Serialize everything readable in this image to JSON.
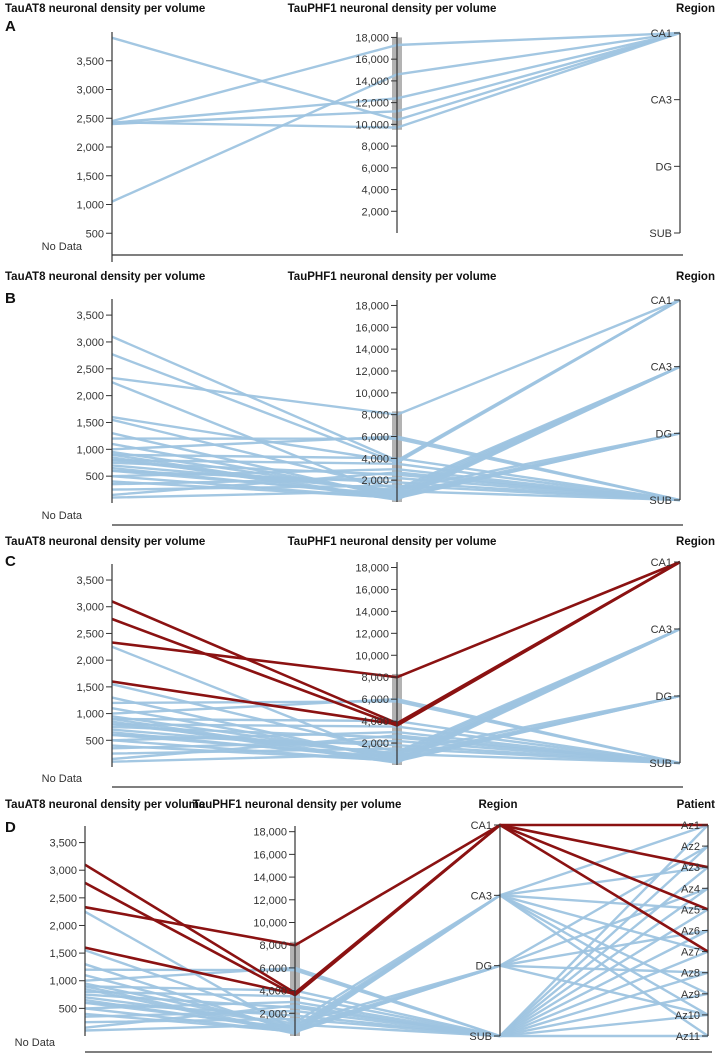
{
  "colors": {
    "line": "#9ec4e0",
    "highlight": "#8b1212",
    "axis": "#333333",
    "brush": "#9a9a9a"
  },
  "chart_data": [
    {
      "panel": "A",
      "type": "parallel-coordinates",
      "no_data_label": "No Data",
      "axes": [
        {
          "title": "TauAT8 neuronal density per volume",
          "kind": "linear",
          "domain": [
            0,
            4000
          ],
          "ticks": [
            500,
            1000,
            1500,
            2000,
            2500,
            3000,
            3500
          ],
          "tick_labels": [
            "500",
            "1,000",
            "1,500",
            "2,000",
            "2,500",
            "3,000",
            "3,500"
          ]
        },
        {
          "title": "TauPHF1 neuronal density per volume",
          "kind": "linear",
          "domain": [
            0,
            18500
          ],
          "ticks": [
            2000,
            4000,
            6000,
            8000,
            10000,
            12000,
            14000,
            16000,
            18000
          ],
          "tick_labels": [
            "2,000",
            "4,000",
            "6,000",
            "8,000",
            "10,000",
            "12,000",
            "14,000",
            "16,000",
            "18,000"
          ],
          "brush": [
            9500,
            18000
          ]
        },
        {
          "title": "Region",
          "kind": "ordinal",
          "categories": [
            "CA1",
            "CA3",
            "DG",
            "SUB"
          ]
        }
      ],
      "records": [
        {
          "values": [
            3900,
            10400,
            "CA1"
          ]
        },
        {
          "values": [
            2450,
            17300,
            "CA1"
          ]
        },
        {
          "values": [
            2420,
            12400,
            "CA1"
          ]
        },
        {
          "values": [
            2400,
            11200,
            "CA1"
          ]
        },
        {
          "values": [
            1050,
            14600,
            "CA1"
          ]
        },
        {
          "values": [
            2430,
            9700,
            "CA1"
          ]
        }
      ]
    },
    {
      "panel": "B",
      "type": "parallel-coordinates",
      "no_data_label": "No Data",
      "axes": [
        {
          "title": "TauAT8 neuronal density per volume",
          "kind": "linear",
          "domain": [
            0,
            3800
          ],
          "ticks": [
            500,
            1000,
            1500,
            2000,
            2500,
            3000,
            3500
          ],
          "tick_labels": [
            "500",
            "1,000",
            "1,500",
            "2,000",
            "2,500",
            "3,000",
            "3,500"
          ]
        },
        {
          "title": "TauPHF1 neuronal density per volume",
          "kind": "linear",
          "domain": [
            0,
            18500
          ],
          "ticks": [
            2000,
            4000,
            6000,
            8000,
            10000,
            12000,
            14000,
            16000,
            18000
          ],
          "tick_labels": [
            "2,000",
            "4,000",
            "6,000",
            "8,000",
            "10,000",
            "12,000",
            "14,000",
            "16,000",
            "18,000"
          ],
          "brush": [
            0,
            8300
          ]
        },
        {
          "title": "Region",
          "kind": "ordinal",
          "categories": [
            "CA1",
            "CA3",
            "DG",
            "SUB"
          ]
        }
      ],
      "records": [
        {
          "values": [
            3100,
            3800,
            "CA1"
          ]
        },
        {
          "values": [
            2770,
            3600,
            "CA1"
          ]
        },
        {
          "values": [
            2330,
            8000,
            "CA1"
          ]
        },
        {
          "values": [
            1600,
            3700,
            "CA1"
          ]
        },
        {
          "values": [
            2250,
            500,
            "CA3"
          ]
        },
        {
          "values": [
            1550,
            1200,
            "CA3"
          ]
        },
        {
          "values": [
            1300,
            400,
            "CA3"
          ]
        },
        {
          "values": [
            1100,
            600,
            "CA3"
          ]
        },
        {
          "values": [
            950,
            800,
            "CA3"
          ]
        },
        {
          "values": [
            900,
            300,
            "CA3"
          ]
        },
        {
          "values": [
            850,
            200,
            "CA3"
          ]
        },
        {
          "values": [
            800,
            1000,
            "CA3"
          ]
        },
        {
          "values": [
            700,
            1100,
            "DG"
          ]
        },
        {
          "values": [
            650,
            500,
            "DG"
          ]
        },
        {
          "values": [
            600,
            700,
            "DG"
          ]
        },
        {
          "values": [
            500,
            350,
            "DG"
          ]
        },
        {
          "values": [
            400,
            400,
            "DG"
          ]
        },
        {
          "values": [
            1200,
            5800,
            "SUB"
          ]
        },
        {
          "values": [
            1000,
            6000,
            "SUB"
          ]
        },
        {
          "values": [
            900,
            4000,
            "SUB"
          ]
        },
        {
          "values": [
            800,
            3500,
            "SUB"
          ]
        },
        {
          "values": [
            750,
            2500,
            "SUB"
          ]
        },
        {
          "values": [
            600,
            1800,
            "SUB"
          ]
        },
        {
          "values": [
            500,
            3000,
            "SUB"
          ]
        },
        {
          "values": [
            350,
            2200,
            "SUB"
          ]
        },
        {
          "values": [
            250,
            1500,
            "SUB"
          ]
        },
        {
          "values": [
            150,
            2700,
            "SUB"
          ]
        },
        {
          "values": [
            100,
            1000,
            "SUB"
          ]
        }
      ]
    },
    {
      "panel": "C",
      "type": "parallel-coordinates",
      "no_data_label": "No Data",
      "axes": [
        {
          "title": "TauAT8 neuronal density per volume",
          "kind": "linear",
          "domain": [
            0,
            3800
          ],
          "ticks": [
            500,
            1000,
            1500,
            2000,
            2500,
            3000,
            3500
          ],
          "tick_labels": [
            "500",
            "1,000",
            "1,500",
            "2,000",
            "2,500",
            "3,000",
            "3,500"
          ]
        },
        {
          "title": "TauPHF1 neuronal density per volume",
          "kind": "linear",
          "domain": [
            0,
            18500
          ],
          "ticks": [
            2000,
            4000,
            6000,
            8000,
            10000,
            12000,
            14000,
            16000,
            18000
          ],
          "tick_labels": [
            "2,000",
            "4,000",
            "6,000",
            "8,000",
            "10,000",
            "12,000",
            "14,000",
            "16,000",
            "18,000"
          ],
          "brush": [
            0,
            8300
          ]
        },
        {
          "title": "Region",
          "kind": "ordinal",
          "categories": [
            "CA1",
            "CA3",
            "DG",
            "SUB"
          ]
        }
      ],
      "records": [
        {
          "values": [
            3100,
            3800,
            "CA1"
          ],
          "highlight": true
        },
        {
          "values": [
            2770,
            3600,
            "CA1"
          ],
          "highlight": true
        },
        {
          "values": [
            2330,
            8000,
            "CA1"
          ],
          "highlight": true
        },
        {
          "values": [
            1600,
            3700,
            "CA1"
          ],
          "highlight": true
        },
        {
          "values": [
            2250,
            500,
            "CA3"
          ]
        },
        {
          "values": [
            1550,
            1200,
            "CA3"
          ]
        },
        {
          "values": [
            1300,
            400,
            "CA3"
          ]
        },
        {
          "values": [
            1100,
            600,
            "CA3"
          ]
        },
        {
          "values": [
            950,
            800,
            "CA3"
          ]
        },
        {
          "values": [
            900,
            300,
            "CA3"
          ]
        },
        {
          "values": [
            850,
            200,
            "CA3"
          ]
        },
        {
          "values": [
            800,
            1000,
            "CA3"
          ]
        },
        {
          "values": [
            700,
            1100,
            "DG"
          ]
        },
        {
          "values": [
            650,
            500,
            "DG"
          ]
        },
        {
          "values": [
            600,
            700,
            "DG"
          ]
        },
        {
          "values": [
            500,
            350,
            "DG"
          ]
        },
        {
          "values": [
            400,
            400,
            "DG"
          ]
        },
        {
          "values": [
            1200,
            5800,
            "SUB"
          ]
        },
        {
          "values": [
            1000,
            6000,
            "SUB"
          ]
        },
        {
          "values": [
            900,
            4000,
            "SUB"
          ]
        },
        {
          "values": [
            800,
            3500,
            "SUB"
          ]
        },
        {
          "values": [
            750,
            2500,
            "SUB"
          ]
        },
        {
          "values": [
            600,
            1800,
            "SUB"
          ]
        },
        {
          "values": [
            500,
            3000,
            "SUB"
          ]
        },
        {
          "values": [
            350,
            2200,
            "SUB"
          ]
        },
        {
          "values": [
            250,
            1500,
            "SUB"
          ]
        },
        {
          "values": [
            150,
            2700,
            "SUB"
          ]
        },
        {
          "values": [
            100,
            1000,
            "SUB"
          ]
        }
      ]
    },
    {
      "panel": "D",
      "type": "parallel-coordinates",
      "no_data_label": "No Data",
      "axes": [
        {
          "title": "TauAT8 neuronal density per volume",
          "kind": "linear",
          "domain": [
            0,
            3800
          ],
          "ticks": [
            500,
            1000,
            1500,
            2000,
            2500,
            3000,
            3500
          ],
          "tick_labels": [
            "500",
            "1,000",
            "1,500",
            "2,000",
            "2,500",
            "3,000",
            "3,500"
          ]
        },
        {
          "title": "TauPHF1 neuronal density per volume",
          "kind": "linear",
          "domain": [
            0,
            18500
          ],
          "ticks": [
            2000,
            4000,
            6000,
            8000,
            10000,
            12000,
            14000,
            16000,
            18000
          ],
          "tick_labels": [
            "2,000",
            "4,000",
            "6,000",
            "8,000",
            "10,000",
            "12,000",
            "14,000",
            "16,000",
            "18,000"
          ],
          "brush": [
            0,
            8300
          ]
        },
        {
          "title": "Region",
          "kind": "ordinal",
          "categories": [
            "CA1",
            "CA3",
            "DG",
            "SUB"
          ]
        },
        {
          "title": "Patient",
          "kind": "ordinal",
          "categories": [
            "Az1",
            "Az2",
            "Az3",
            "Az4",
            "Az5",
            "Az6",
            "Az7",
            "Az8",
            "Az9",
            "Az10",
            "Az11"
          ]
        }
      ],
      "records": [
        {
          "values": [
            3100,
            3800,
            "CA1",
            "Az1"
          ],
          "highlight": true
        },
        {
          "values": [
            2770,
            3600,
            "CA1",
            "Az3"
          ],
          "highlight": true
        },
        {
          "values": [
            2330,
            8000,
            "CA1",
            "Az5"
          ],
          "highlight": true
        },
        {
          "values": [
            1600,
            3700,
            "CA1",
            "Az7"
          ],
          "highlight": true
        },
        {
          "values": [
            2250,
            500,
            "CA3",
            "Az1"
          ]
        },
        {
          "values": [
            1550,
            1200,
            "CA3",
            "Az3"
          ]
        },
        {
          "values": [
            1300,
            400,
            "CA3",
            "Az5"
          ]
        },
        {
          "values": [
            1100,
            600,
            "CA3",
            "Az7"
          ]
        },
        {
          "values": [
            950,
            800,
            "CA3",
            "Az9"
          ]
        },
        {
          "values": [
            900,
            300,
            "CA3",
            "Az11"
          ]
        },
        {
          "values": [
            850,
            200,
            "CA3",
            "Az10"
          ]
        },
        {
          "values": [
            700,
            1100,
            "DG",
            "Az2"
          ]
        },
        {
          "values": [
            650,
            500,
            "DG",
            "Az4"
          ]
        },
        {
          "values": [
            600,
            700,
            "DG",
            "Az6"
          ]
        },
        {
          "values": [
            500,
            350,
            "DG",
            "Az8"
          ]
        },
        {
          "values": [
            400,
            400,
            "DG",
            "Az10"
          ]
        },
        {
          "values": [
            1200,
            5800,
            "SUB",
            "Az1"
          ]
        },
        {
          "values": [
            1000,
            6000,
            "SUB",
            "Az2"
          ]
        },
        {
          "values": [
            900,
            4000,
            "SUB",
            "Az3"
          ]
        },
        {
          "values": [
            800,
            3500,
            "SUB",
            "Az4"
          ]
        },
        {
          "values": [
            750,
            2500,
            "SUB",
            "Az5"
          ]
        },
        {
          "values": [
            600,
            1800,
            "SUB",
            "Az6"
          ]
        },
        {
          "values": [
            500,
            3000,
            "SUB",
            "Az7"
          ]
        },
        {
          "values": [
            350,
            2200,
            "SUB",
            "Az8"
          ]
        },
        {
          "values": [
            250,
            1500,
            "SUB",
            "Az9"
          ]
        },
        {
          "values": [
            150,
            2700,
            "SUB",
            "Az10"
          ]
        },
        {
          "values": [
            100,
            1000,
            "SUB",
            "Az11"
          ]
        }
      ]
    }
  ]
}
